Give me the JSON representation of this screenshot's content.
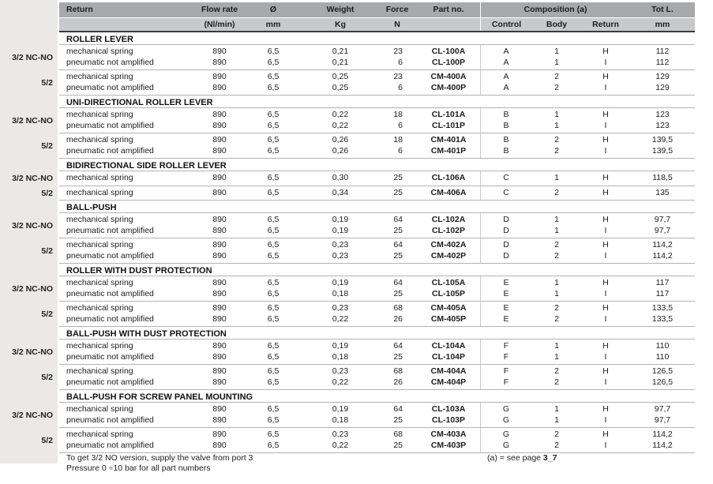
{
  "page": {
    "header": {
      "return": "Return",
      "flow_rate": "Flow rate",
      "flow_rate_unit": "(Nl/min)",
      "diameter": "Ø",
      "diameter_unit": "mm",
      "weight": "Weight",
      "weight_unit": "Kg",
      "force": "Force",
      "force_unit": "N",
      "part_no": "Part no.",
      "composition": "Composition (a)",
      "control": "Control",
      "body": "Body",
      "return_comp": "Return",
      "tot_l": "Tot L.",
      "tot_l_unit": "mm"
    },
    "sections": [
      {
        "title": "ROLLER LEVER",
        "groups": [
          {
            "label": "3/2 NC-NO",
            "rows": [
              [
                "mechanical spring",
                "890",
                "6,5",
                "0,21",
                "23",
                "CL-100A",
                "A",
                "1",
                "H",
                "112"
              ],
              [
                "pneumatic not amplified",
                "890",
                "6,5",
                "0,21",
                "6",
                "CL-100P",
                "A",
                "1",
                "I",
                "112"
              ]
            ]
          },
          {
            "label": "5/2",
            "rows": [
              [
                "mechanical spring",
                "890",
                "6,5",
                "0,25",
                "23",
                "CM-400A",
                "A",
                "2",
                "H",
                "129"
              ],
              [
                "pneumatic not amplified",
                "890",
                "6,5",
                "0,25",
                "6",
                "CM-400P",
                "A",
                "2",
                "I",
                "129"
              ]
            ]
          }
        ]
      },
      {
        "title": "UNI-DIRECTIONAL ROLLER LEVER",
        "groups": [
          {
            "label": "3/2 NC-NO",
            "rows": [
              [
                "mechanical spring",
                "890",
                "6,5",
                "0,22",
                "18",
                "CL-101A",
                "B",
                "1",
                "H",
                "123"
              ],
              [
                "pneumatic not amplified",
                "890",
                "6,5",
                "0,22",
                "6",
                "CL-101P",
                "B",
                "1",
                "I",
                "123"
              ]
            ]
          },
          {
            "label": "5/2",
            "rows": [
              [
                "mechanical spring",
                "890",
                "6,5",
                "0,26",
                "18",
                "CM-401A",
                "B",
                "2",
                "H",
                "139,5"
              ],
              [
                "pneumatic not amplified",
                "890",
                "6,5",
                "0,26",
                "6",
                "CM-401P",
                "B",
                "2",
                "I",
                "139,5"
              ]
            ]
          }
        ]
      },
      {
        "title": "BIDIRECTIONAL SIDE ROLLER LEVER",
        "groups": [
          {
            "label": "3/2 NC-NO",
            "rows": [
              [
                "mechanical spring",
                "890",
                "6,5",
                "0,30",
                "25",
                "CL-106A",
                "C",
                "1",
                "H",
                "118,5"
              ]
            ]
          },
          {
            "label": "5/2",
            "rows": [
              [
                "mechanical spring",
                "890",
                "6,5",
                "0,34",
                "25",
                "CM-406A",
                "C",
                "2",
                "H",
                "135"
              ]
            ]
          }
        ]
      },
      {
        "title": "BALL-PUSH",
        "groups": [
          {
            "label": "3/2 NC-NO",
            "rows": [
              [
                "mechanical spring",
                "890",
                "6,5",
                "0,19",
                "64",
                "CL-102A",
                "D",
                "1",
                "H",
                "97,7"
              ],
              [
                "pneumatic not amplified",
                "890",
                "6,5",
                "0,19",
                "25",
                "CL-102P",
                "D",
                "1",
                "I",
                "97,7"
              ]
            ]
          },
          {
            "label": "5/2",
            "rows": [
              [
                "mechanical spring",
                "890",
                "6,5",
                "0,23",
                "64",
                "CM-402A",
                "D",
                "2",
                "H",
                "114,2"
              ],
              [
                "pneumatic not amplified",
                "890",
                "6,5",
                "0,23",
                "25",
                "CM-402P",
                "D",
                "2",
                "I",
                "114,2"
              ]
            ]
          }
        ]
      },
      {
        "title": "ROLLER WITH DUST PROTECTION",
        "groups": [
          {
            "label": "3/2 NC-NO",
            "rows": [
              [
                "mechanical spring",
                "890",
                "6,5",
                "0,19",
                "64",
                "CL-105A",
                "E",
                "1",
                "H",
                "117"
              ],
              [
                "pneumatic not amplified",
                "890",
                "6,5",
                "0,18",
                "25",
                "CL-105P",
                "E",
                "1",
                "I",
                "117"
              ]
            ]
          },
          {
            "label": "5/2",
            "rows": [
              [
                "mechanical spring",
                "890",
                "6,5",
                "0,23",
                "68",
                "CM-405A",
                "E",
                "2",
                "H",
                "133,5"
              ],
              [
                "pneumatic not amplified",
                "890",
                "6,5",
                "0,22",
                "26",
                "CM-405P",
                "E",
                "2",
                "I",
                "133,5"
              ]
            ]
          }
        ]
      },
      {
        "title": "BALL-PUSH WITH DUST PROTECTION",
        "groups": [
          {
            "label": "3/2 NC-NO",
            "rows": [
              [
                "mechanical spring",
                "890",
                "6,5",
                "0,19",
                "64",
                "CL-104A",
                "F",
                "1",
                "H",
                "110"
              ],
              [
                "pneumatic not amplified",
                "890",
                "6,5",
                "0,18",
                "25",
                "CL-104P",
                "F",
                "1",
                "I",
                "110"
              ]
            ]
          },
          {
            "label": "5/2",
            "rows": [
              [
                "mechanical spring",
                "890",
                "6,5",
                "0,23",
                "68",
                "CM-404A",
                "F",
                "2",
                "H",
                "126,5"
              ],
              [
                "pneumatic not amplified",
                "890",
                "6,5",
                "0,22",
                "26",
                "CM-404P",
                "F",
                "2",
                "I",
                "126,5"
              ]
            ]
          }
        ]
      },
      {
        "title": "BALL-PUSH FOR SCREW PANEL MOUNTING",
        "groups": [
          {
            "label": "3/2 NC-NO",
            "rows": [
              [
                "mechanical spring",
                "890",
                "6,5",
                "0,19",
                "64",
                "CL-103A",
                "G",
                "1",
                "H",
                "97,7"
              ],
              [
                "pneumatic not amplified",
                "890",
                "6,5",
                "0,18",
                "25",
                "CL-103P",
                "G",
                "1",
                "I",
                "97,7"
              ]
            ]
          },
          {
            "label": "5/2",
            "rows": [
              [
                "mechanical spring",
                "890",
                "6,5",
                "0,23",
                "68",
                "CM-403A",
                "G",
                "2",
                "H",
                "114,2"
              ],
              [
                "pneumatic not amplified",
                "890",
                "6,5",
                "0,22",
                "25",
                "CM-403P",
                "G",
                "2",
                "I",
                "114,2"
              ]
            ]
          }
        ]
      }
    ],
    "footnotes": {
      "note_port": "To get 3/2 NO version, supply the valve from port 3",
      "note_pressure": "Pressure 0 ÷10 bar for all part numbers",
      "note_a_prefix": "(a) = see page ",
      "note_a_page": "3_7"
    },
    "colors": {
      "header_row1": "#a6aaad",
      "header_row2": "#c7cacc",
      "gutter": "#eae9e6",
      "rule": "#b3b3b3",
      "heavy_rule": "#3a3a3a",
      "divider": "#c9c9c9",
      "text": "#1c1c1c"
    }
  }
}
